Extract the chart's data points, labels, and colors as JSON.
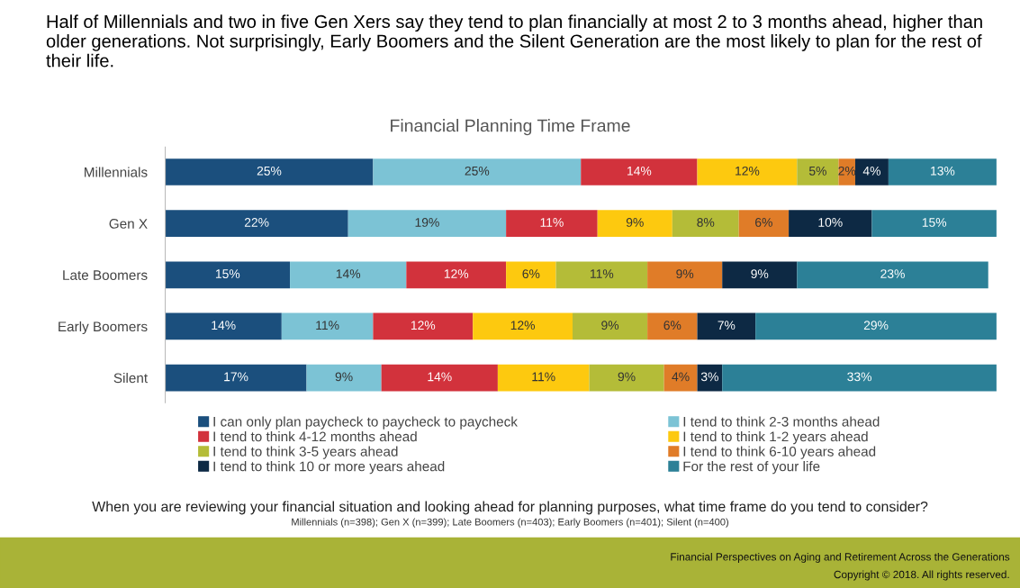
{
  "chart_data": {
    "type": "bar",
    "orientation": "horizontal",
    "stacked": true,
    "grid": false,
    "legend": "bottom",
    "title": "Half of Millennials and two in five Gen Xers say they tend to plan financially at most 2 to 3 months ahead, higher than older generations. Not surprisingly, Early Boomers and the Silent Generation are the most likely to plan for the rest of their life.",
    "subtitle": "Financial Planning Time Frame",
    "categories": [
      "Millennials",
      "Gen X",
      "Late Boomers",
      "Early Boomers",
      "Silent"
    ],
    "series": [
      {
        "name": "I can only plan paycheck to paycheck to paycheck",
        "color": "#1b4f7d",
        "values": [
          25,
          22,
          15,
          14,
          17
        ],
        "value_labels": [
          "25%",
          "22%",
          "15%",
          "14%",
          "17%"
        ]
      },
      {
        "name": "I tend to think 2-3 months ahead",
        "color": "#7cc3d5",
        "values": [
          25,
          19,
          14,
          11,
          9
        ],
        "value_labels": [
          "25%",
          "19%",
          "14%",
          "11%",
          "9%"
        ]
      },
      {
        "name": "I tend to think 4-12 months ahead",
        "color": "#d2323c",
        "values": [
          14,
          11,
          12,
          12,
          14
        ],
        "value_labels": [
          "14%",
          "11%",
          "12%",
          "12%",
          "14%"
        ]
      },
      {
        "name": "I tend to think 1-2 years ahead",
        "color": "#fdc90f",
        "values": [
          12,
          9,
          6,
          12,
          11
        ],
        "value_labels": [
          "12%",
          "9%",
          "6%",
          "12%",
          "11%"
        ]
      },
      {
        "name": "I tend to think 3-5 years ahead",
        "color": "#b4bc38",
        "values": [
          5,
          8,
          11,
          9,
          9
        ],
        "value_labels": [
          "5%",
          "8%",
          "11%",
          "9%",
          "9%"
        ]
      },
      {
        "name": "I tend to think 6-10 years ahead",
        "color": "#e07c28",
        "values": [
          2,
          6,
          9,
          6,
          4
        ],
        "value_labels": [
          "2%",
          "6%",
          "9%",
          "6%",
          "4%"
        ]
      },
      {
        "name": "I tend to think 10 or more years ahead",
        "color": "#0d2944",
        "values": [
          4,
          10,
          9,
          7,
          3
        ],
        "value_labels": [
          "4%",
          "10%",
          "9%",
          "7%",
          "3%"
        ]
      },
      {
        "name": "For the rest of your life",
        "color": "#2c8097",
        "values": [
          13,
          15,
          23,
          29,
          33
        ],
        "value_labels": [
          "13%",
          "15%",
          "23%",
          "29%",
          "33%"
        ]
      }
    ],
    "annotations": [
      "When you are reviewing your financial situation and looking ahead for planning purposes, what time frame do you tend to consider?",
      "Millennials (n=398); Gen X (n=399); Late Boomers (n=403); Early Boomers (n=401); Silent (n=400)",
      "Financial Perspectives on Aging and Retirement Across the Generations",
      "Copyright © 2018. All rights reserved."
    ]
  }
}
